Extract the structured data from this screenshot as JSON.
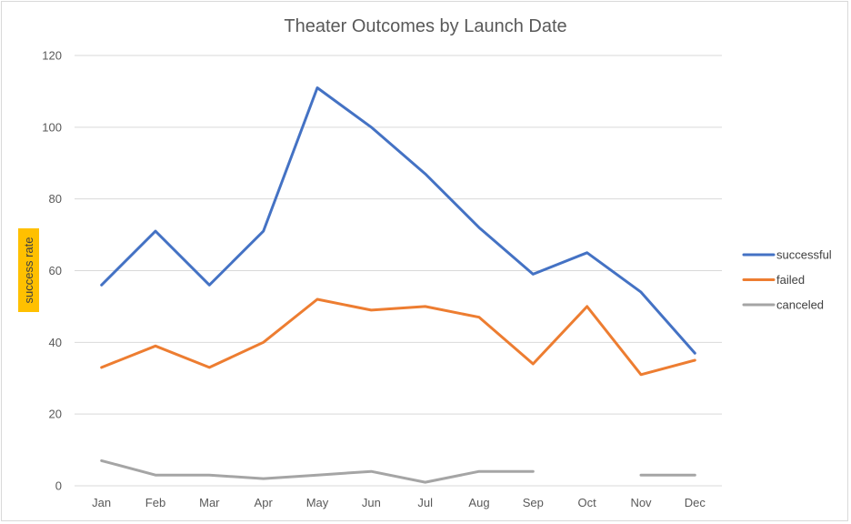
{
  "chart_data": {
    "type": "line",
    "title": "Theater Outcomes by Launch Date",
    "xlabel": "",
    "ylabel": "success rate",
    "categories": [
      "Jan",
      "Feb",
      "Mar",
      "Apr",
      "May",
      "Jun",
      "Jul",
      "Aug",
      "Sep",
      "Oct",
      "Nov",
      "Dec"
    ],
    "ylim": [
      0,
      120
    ],
    "yticks": [
      0,
      20,
      40,
      60,
      80,
      100,
      120
    ],
    "grid": true,
    "legend": "right",
    "series": [
      {
        "name": "successful",
        "color": "#4472c4",
        "values": [
          56,
          71,
          56,
          71,
          111,
          100,
          87,
          72,
          59,
          65,
          54,
          37
        ]
      },
      {
        "name": "failed",
        "color": "#ed7d31",
        "values": [
          33,
          39,
          33,
          40,
          52,
          49,
          50,
          47,
          34,
          50,
          31,
          35
        ]
      },
      {
        "name": "canceled",
        "color": "#a5a5a5",
        "values": [
          7,
          3,
          3,
          2,
          3,
          4,
          1,
          4,
          4,
          null,
          3,
          3
        ]
      }
    ],
    "ylabel_highlight_color": "#ffc000"
  }
}
